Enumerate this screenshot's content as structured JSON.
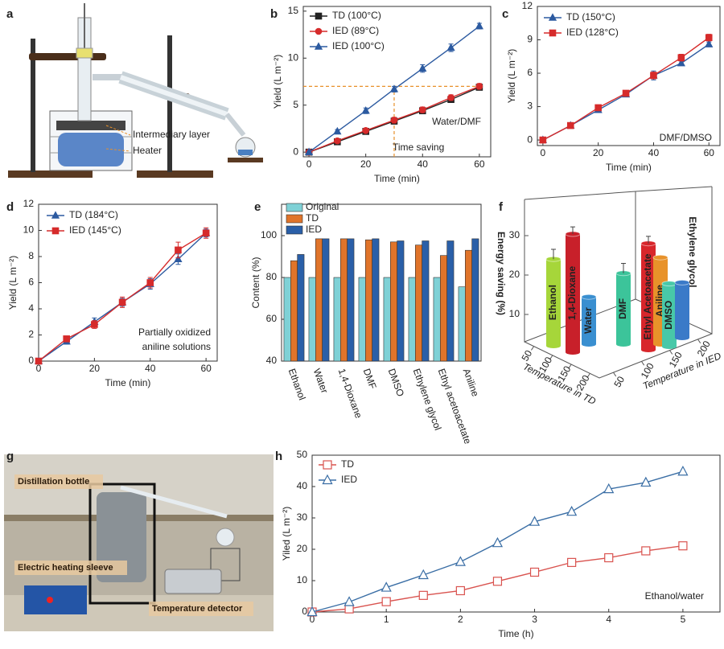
{
  "panel_labels": [
    "a",
    "b",
    "c",
    "d",
    "e",
    "f",
    "g",
    "h"
  ],
  "panel_a": {
    "annotations": [
      "Intermediary layer",
      "Heater"
    ]
  },
  "panel_g": {
    "annotations": [
      "Distillation bottle",
      "Electric heating sleeve",
      "Temperature detector"
    ]
  },
  "chart_data": [
    {
      "type": "line",
      "xlabel": "Time (min)",
      "ylabel": "Yield (L m⁻²)",
      "x": [
        0,
        10,
        20,
        30,
        40,
        50,
        60
      ],
      "xlim": [
        -2,
        64
      ],
      "xticks": [
        0,
        20,
        40,
        60
      ],
      "ylim": [
        -0.5,
        15.5
      ],
      "yticks": [
        0,
        5,
        10,
        15
      ],
      "series": [
        {
          "name": "TD (100°C)",
          "color": "#222222",
          "marker": "square",
          "values": [
            0,
            1.1,
            2.2,
            3.3,
            4.4,
            5.6,
            6.9
          ],
          "errors": [
            0,
            0.2,
            0.2,
            0.3,
            0.3,
            0.3,
            0.3
          ]
        },
        {
          "name": "IED (89°C)",
          "color": "#d62b2b",
          "marker": "circle",
          "values": [
            0,
            1.2,
            2.3,
            3.4,
            4.5,
            5.8,
            7.0
          ],
          "errors": [
            0,
            0.2,
            0.2,
            0.3,
            0.3,
            0.3,
            0.3
          ]
        },
        {
          "name": "IED (100°C)",
          "color": "#2c5aa0",
          "marker": "triangle",
          "values": [
            0,
            2.2,
            4.4,
            6.7,
            8.9,
            11.1,
            13.4
          ],
          "errors": [
            0,
            0.2,
            0.3,
            0.3,
            0.4,
            0.4,
            0.3
          ]
        }
      ],
      "reference": {
        "x": 30,
        "y": 7,
        "color": "#e8902a"
      },
      "annotations": [
        "Water/DMF",
        "Time saving"
      ]
    },
    {
      "type": "line",
      "xlabel": "Time (min)",
      "ylabel": "Yield (L m⁻²)",
      "x": [
        0,
        10,
        20,
        30,
        40,
        50,
        60
      ],
      "xlim": [
        -2,
        64
      ],
      "xticks": [
        0,
        20,
        40,
        60
      ],
      "ylim": [
        -0.5,
        12
      ],
      "yticks": [
        0,
        3,
        6,
        9,
        12
      ],
      "series": [
        {
          "name": "TD (150°C)",
          "color": "#2c5aa0",
          "marker": "triangle",
          "values": [
            0,
            1.3,
            2.7,
            4.1,
            5.8,
            6.9,
            8.6
          ],
          "errors": [
            0,
            0.15,
            0.2,
            0.2,
            0.4,
            0.2,
            0.2
          ]
        },
        {
          "name": "IED (128°C)",
          "color": "#d62b2b",
          "marker": "square",
          "values": [
            0,
            1.3,
            2.9,
            4.2,
            5.8,
            7.4,
            9.2
          ],
          "errors": [
            0,
            0.15,
            0.2,
            0.2,
            0.3,
            0.3,
            0.3
          ]
        }
      ],
      "annotations": [
        "DMF/DMSO"
      ]
    },
    {
      "type": "line",
      "xlabel": "Time (min)",
      "ylabel": "Yield (L m⁻²)",
      "x": [
        0,
        10,
        20,
        30,
        40,
        50,
        60
      ],
      "xlim": [
        0,
        64
      ],
      "xticks": [
        0,
        20,
        40,
        60
      ],
      "ylim": [
        0,
        12
      ],
      "yticks": [
        0,
        2,
        4,
        6,
        8,
        10,
        12
      ],
      "series": [
        {
          "name": "TD (184°C)",
          "color": "#2c5aa0",
          "marker": "triangle",
          "values": [
            0,
            1.5,
            3.0,
            4.5,
            5.9,
            7.8,
            9.8
          ],
          "errors": [
            0,
            0.2,
            0.3,
            0.3,
            0.4,
            0.4,
            0.3
          ]
        },
        {
          "name": "IED (145°C)",
          "color": "#d62b2b",
          "marker": "square",
          "values": [
            0,
            1.7,
            2.8,
            4.5,
            6.0,
            8.5,
            9.8
          ],
          "errors": [
            0,
            0.2,
            0.3,
            0.4,
            0.4,
            0.6,
            0.4
          ]
        }
      ],
      "annotations": [
        "Partially oxidized",
        "aniline solutions"
      ]
    },
    {
      "type": "bar",
      "ylabel": "Content (%)",
      "categories": [
        "Ethanol",
        "Water",
        "1,4-Dioxane",
        "DMF",
        "DMSO",
        "Ethylene glycol",
        "Ethyl acetoacetate",
        "Aniline"
      ],
      "ylim": [
        40,
        115
      ],
      "yticks": [
        40,
        60,
        80,
        100
      ],
      "series": [
        {
          "name": "Original",
          "color": "#7fd1d6",
          "values": [
            80,
            80,
            80,
            80,
            80,
            80,
            80,
            75.5
          ]
        },
        {
          "name": "TD",
          "color": "#e0742a",
          "values": [
            88,
            98.5,
            98.5,
            98,
            97,
            95.5,
            90.5,
            93
          ]
        },
        {
          "name": "IED",
          "color": "#2a5fa8",
          "values": [
            91,
            98.5,
            98.5,
            98.5,
            97.5,
            97.5,
            97.5,
            98.5
          ]
        }
      ]
    },
    {
      "type": "bar3d",
      "zlabel": "Energy saving (%)",
      "xlabel": "Temperature in TD",
      "ylabel": "Temperature in IED",
      "categories": [
        "Ethanol",
        "1,4-Dioxane",
        "Water",
        "DMF",
        "Ethyl Acetoacetate",
        "Aniline",
        "DMSO",
        "Ethylene glycol"
      ],
      "values": [
        22,
        30,
        12,
        18,
        27,
        22,
        16,
        14
      ],
      "errors": [
        2.5,
        1.8,
        0,
        2.5,
        1.8,
        0,
        0,
        0
      ],
      "colors": [
        "#a6d63a",
        "#c8202a",
        "#3a8fd0",
        "#3cc49a",
        "#d8262b",
        "#e8922a",
        "#48c8a8",
        "#3a7ac8"
      ],
      "zlim": [
        0,
        40
      ],
      "zticks": [
        10,
        20,
        30
      ],
      "xlim": [
        25,
        225
      ],
      "xticks": [
        50,
        100,
        150,
        200
      ],
      "ylim": [
        25,
        225
      ],
      "yticks": [
        50,
        100,
        150,
        200
      ]
    },
    {
      "type": "line",
      "xlabel": "Time (h)",
      "ylabel": "Yiled (L m⁻²)",
      "x": [
        0,
        0.5,
        1,
        1.5,
        2,
        2.5,
        3,
        3.5,
        4,
        4.5,
        5
      ],
      "xlim": [
        0,
        5.5
      ],
      "xticks": [
        0,
        1,
        2,
        3,
        4,
        5
      ],
      "ylim": [
        0,
        50
      ],
      "yticks": [
        0,
        10,
        20,
        30,
        40,
        50
      ],
      "series": [
        {
          "name": "TD",
          "color": "#d9534f",
          "marker": "open-square",
          "values": [
            0,
            1,
            3.3,
            5.3,
            6.8,
            9.8,
            12.7,
            15.8,
            17.3,
            19.5,
            21.1
          ]
        },
        {
          "name": "IED",
          "color": "#3a6ea5",
          "marker": "open-triangle",
          "values": [
            0,
            3.2,
            7.8,
            11.8,
            16,
            22,
            28.8,
            32,
            39.2,
            41.3,
            44.8
          ]
        }
      ],
      "annotations": [
        "Ethanol/water"
      ]
    }
  ]
}
